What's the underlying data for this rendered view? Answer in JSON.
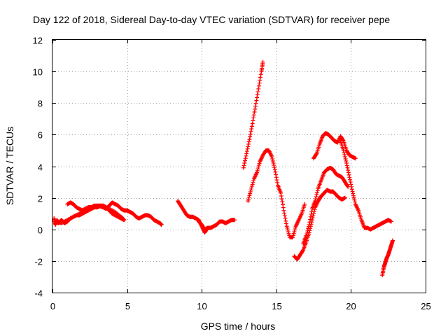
{
  "chart_data": {
    "type": "scatter",
    "title": "Day 122 of 2018, Sidereal Day-to-day VTEC variation (SDTVAR) for receiver pepe",
    "xlabel": "GPS time / hours",
    "ylabel": "SDTVAR / TECUs",
    "xlim": [
      0,
      25
    ],
    "ylim": [
      -4,
      12
    ],
    "xticks": [
      "0",
      "5",
      "10",
      "15",
      "20",
      "25"
    ],
    "yticks": [
      "-4",
      "-2",
      "0",
      "2",
      "4",
      "6",
      "8",
      "10",
      "12"
    ],
    "grid": true,
    "color": "#ff0000",
    "marker": "plus",
    "series": [
      {
        "points": [
          [
            0.1,
            0.7
          ],
          [
            0.2,
            0.3
          ],
          [
            0.3,
            0.6
          ],
          [
            0.4,
            0.4
          ],
          [
            0.6,
            0.6
          ],
          [
            0.8,
            0.4
          ],
          [
            1.0,
            0.5
          ],
          [
            1.2,
            0.7
          ],
          [
            1.4,
            0.8
          ],
          [
            1.6,
            0.9
          ],
          [
            1.8,
            0.9
          ],
          [
            2.0,
            1.0
          ],
          [
            2.2,
            1.1
          ],
          [
            2.4,
            1.2
          ],
          [
            2.6,
            1.3
          ],
          [
            2.8,
            1.4
          ],
          [
            3.0,
            1.4
          ],
          [
            3.2,
            1.5
          ],
          [
            3.4,
            1.5
          ],
          [
            3.6,
            1.4
          ],
          [
            3.8,
            1.2
          ],
          [
            4.0,
            1.0
          ],
          [
            4.2,
            0.9
          ],
          [
            4.4,
            0.8
          ],
          [
            4.6,
            0.7
          ],
          [
            4.8,
            0.6
          ]
        ]
      },
      {
        "points": [
          [
            0.3,
            0.5
          ],
          [
            0.6,
            0.4
          ],
          [
            1.0,
            0.6
          ],
          [
            1.4,
            0.8
          ],
          [
            1.8,
            1.0
          ],
          [
            2.2,
            1.2
          ],
          [
            2.6,
            1.4
          ],
          [
            3.0,
            1.5
          ],
          [
            3.4,
            1.4
          ],
          [
            3.8,
            1.3
          ],
          [
            4.2,
            1.1
          ],
          [
            4.6,
            0.8
          ],
          [
            4.8,
            0.6
          ]
        ]
      },
      {
        "points": [
          [
            1.0,
            1.6
          ],
          [
            1.2,
            1.7
          ],
          [
            1.4,
            1.6
          ],
          [
            1.6,
            1.4
          ],
          [
            1.8,
            1.3
          ],
          [
            2.0,
            1.2
          ],
          [
            2.2,
            1.3
          ],
          [
            2.4,
            1.4
          ],
          [
            2.6,
            1.4
          ],
          [
            2.8,
            1.5
          ],
          [
            3.0,
            1.5
          ],
          [
            3.2,
            1.5
          ],
          [
            3.4,
            1.4
          ],
          [
            3.6,
            1.3
          ],
          [
            3.8,
            1.5
          ],
          [
            4.0,
            1.7
          ],
          [
            4.2,
            1.6
          ],
          [
            4.4,
            1.5
          ],
          [
            4.6,
            1.3
          ],
          [
            4.8,
            1.2
          ],
          [
            5.0,
            1.2
          ],
          [
            5.2,
            1.1
          ],
          [
            5.4,
            1.0
          ],
          [
            5.6,
            0.8
          ],
          [
            5.8,
            0.7
          ],
          [
            6.0,
            0.8
          ],
          [
            6.2,
            0.9
          ],
          [
            6.4,
            0.9
          ],
          [
            6.6,
            0.8
          ],
          [
            6.8,
            0.6
          ],
          [
            7.0,
            0.5
          ],
          [
            7.2,
            0.4
          ],
          [
            7.3,
            0.3
          ]
        ]
      },
      {
        "points": [
          [
            8.4,
            1.8
          ],
          [
            8.6,
            1.5
          ],
          [
            8.8,
            1.2
          ],
          [
            9.0,
            0.9
          ],
          [
            9.2,
            0.8
          ],
          [
            9.4,
            0.8
          ],
          [
            9.6,
            0.7
          ],
          [
            9.8,
            0.6
          ],
          [
            10.0,
            0.2
          ],
          [
            10.2,
            -0.2
          ],
          [
            10.4,
            0.1
          ],
          [
            10.6,
            0.1
          ],
          [
            10.8,
            0.2
          ],
          [
            11.0,
            0.3
          ],
          [
            11.2,
            0.5
          ],
          [
            11.4,
            0.5
          ],
          [
            11.6,
            0.4
          ],
          [
            11.8,
            0.5
          ],
          [
            12.0,
            0.6
          ],
          [
            12.2,
            0.6
          ]
        ]
      },
      {
        "points": [
          [
            9.8,
            0.5
          ],
          [
            10.0,
            0.3
          ],
          [
            10.2,
            0.0
          ],
          [
            10.4,
            0.1
          ]
        ]
      },
      {
        "points": [
          [
            12.8,
            3.9
          ],
          [
            13.0,
            4.8
          ],
          [
            13.2,
            5.7
          ],
          [
            13.4,
            6.7
          ],
          [
            13.6,
            7.8
          ],
          [
            13.8,
            8.9
          ],
          [
            14.0,
            10.0
          ],
          [
            14.1,
            10.6
          ]
        ]
      },
      {
        "points": [
          [
            13.1,
            1.8
          ],
          [
            13.3,
            2.5
          ],
          [
            13.5,
            3.2
          ],
          [
            13.7,
            3.6
          ],
          [
            13.9,
            4.3
          ],
          [
            14.1,
            4.7
          ],
          [
            14.3,
            5.0
          ],
          [
            14.5,
            5.0
          ],
          [
            14.7,
            4.6
          ],
          [
            14.9,
            3.8
          ],
          [
            15.1,
            2.8
          ],
          [
            15.3,
            2.3
          ],
          [
            15.5,
            1.2
          ],
          [
            15.7,
            0.2
          ],
          [
            15.9,
            -0.5
          ],
          [
            16.1,
            -0.5
          ],
          [
            16.3,
            0.2
          ],
          [
            16.5,
            0.6
          ],
          [
            16.7,
            1.0
          ],
          [
            16.9,
            1.6
          ]
        ]
      },
      {
        "points": [
          [
            16.2,
            -1.7
          ],
          [
            16.4,
            -1.9
          ],
          [
            16.6,
            -1.6
          ],
          [
            16.8,
            -1.3
          ],
          [
            17.0,
            -0.8
          ],
          [
            17.2,
            -0.2
          ],
          [
            17.4,
            0.6
          ],
          [
            17.6,
            1.4
          ],
          [
            17.8,
            1.8
          ],
          [
            18.0,
            2.1
          ],
          [
            18.2,
            2.3
          ],
          [
            18.4,
            2.5
          ],
          [
            18.6,
            2.4
          ],
          [
            18.8,
            2.4
          ],
          [
            19.0,
            2.2
          ],
          [
            19.2,
            2.0
          ],
          [
            19.4,
            1.9
          ],
          [
            19.6,
            2.0
          ]
        ]
      },
      {
        "points": [
          [
            16.8,
            -0.9
          ],
          [
            17.0,
            -0.4
          ],
          [
            17.2,
            0.3
          ],
          [
            17.4,
            1.3
          ],
          [
            17.6,
            1.8
          ],
          [
            17.8,
            2.6
          ],
          [
            18.0,
            3.1
          ],
          [
            18.2,
            3.6
          ],
          [
            18.4,
            3.8
          ],
          [
            18.6,
            3.9
          ],
          [
            18.8,
            3.8
          ],
          [
            19.0,
            3.5
          ],
          [
            19.2,
            3.4
          ],
          [
            19.4,
            3.3
          ],
          [
            19.6,
            3.0
          ],
          [
            19.8,
            2.7
          ]
        ]
      },
      {
        "points": [
          [
            17.5,
            4.5
          ],
          [
            17.7,
            4.8
          ],
          [
            17.9,
            5.4
          ],
          [
            18.1,
            5.9
          ],
          [
            18.3,
            6.1
          ],
          [
            18.5,
            6.0
          ],
          [
            18.7,
            5.8
          ],
          [
            18.9,
            5.6
          ],
          [
            19.1,
            5.5
          ],
          [
            19.3,
            5.9
          ],
          [
            19.5,
            5.6
          ],
          [
            19.7,
            5.0
          ],
          [
            19.9,
            4.7
          ],
          [
            20.1,
            4.6
          ],
          [
            20.3,
            4.5
          ]
        ]
      },
      {
        "points": [
          [
            19.3,
            5.6
          ],
          [
            19.5,
            5.0
          ],
          [
            19.7,
            4.2
          ],
          [
            19.9,
            3.3
          ],
          [
            20.1,
            2.4
          ],
          [
            20.3,
            1.6
          ],
          [
            20.5,
            1.2
          ],
          [
            20.7,
            0.6
          ],
          [
            20.9,
            0.1
          ],
          [
            21.1,
            0.1
          ],
          [
            21.3,
            0.0
          ],
          [
            21.5,
            0.1
          ],
          [
            21.7,
            0.2
          ],
          [
            21.9,
            0.3
          ],
          [
            22.1,
            0.4
          ],
          [
            22.3,
            0.5
          ],
          [
            22.5,
            0.6
          ],
          [
            22.7,
            0.5
          ]
        ]
      },
      {
        "points": [
          [
            22.1,
            -2.9
          ],
          [
            22.2,
            -2.4
          ],
          [
            22.3,
            -2.1
          ],
          [
            22.4,
            -1.8
          ],
          [
            22.5,
            -1.6
          ],
          [
            22.6,
            -1.3
          ],
          [
            22.7,
            -1.0
          ],
          [
            22.8,
            -0.7
          ]
        ]
      }
    ]
  }
}
